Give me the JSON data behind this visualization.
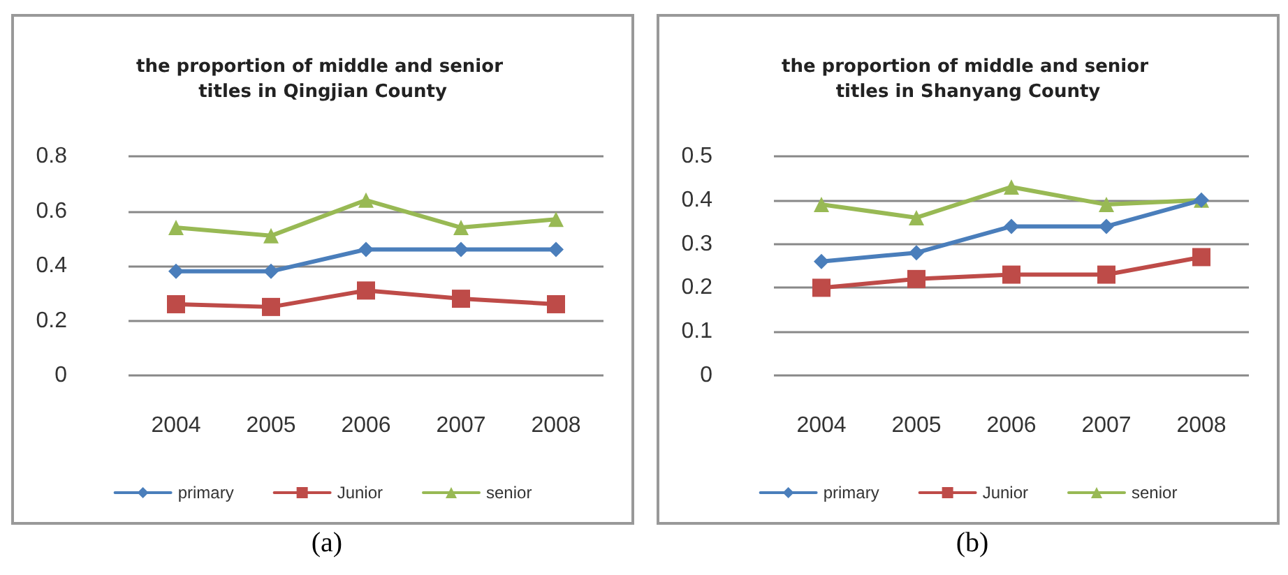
{
  "chart_data": [
    {
      "type": "line",
      "title": "the proportion of middle and senior titles in Qingjian County",
      "categories": [
        "2004",
        "2005",
        "2006",
        "2007",
        "2008"
      ],
      "ylim": [
        0,
        0.8
      ],
      "yticks": [
        0,
        0.2,
        0.4,
        0.6,
        0.8
      ],
      "grid": "y",
      "legend": "bottom",
      "annotations": [
        "(a)"
      ],
      "series": [
        {
          "name": "primary",
          "color": "#4a7ebb",
          "marker": "diamond",
          "values": [
            0.38,
            0.38,
            0.46,
            0.46,
            0.46
          ]
        },
        {
          "name": "Junior",
          "color": "#be4b48",
          "marker": "square",
          "values": [
            0.26,
            0.25,
            0.31,
            0.28,
            0.26
          ]
        },
        {
          "name": "senior",
          "color": "#98b954",
          "marker": "triangle",
          "values": [
            0.54,
            0.51,
            0.64,
            0.54,
            0.57
          ]
        }
      ]
    },
    {
      "type": "line",
      "title": "the proportion of middle and senior titles in Shanyang County",
      "categories": [
        "2004",
        "2005",
        "2006",
        "2007",
        "2008"
      ],
      "ylim": [
        0,
        0.5
      ],
      "yticks": [
        0,
        0.1,
        0.2,
        0.3,
        0.4,
        0.5
      ],
      "grid": "y",
      "legend": "bottom",
      "annotations": [
        "(b)"
      ],
      "series": [
        {
          "name": "primary",
          "color": "#4a7ebb",
          "marker": "diamond",
          "values": [
            0.26,
            0.28,
            0.34,
            0.34,
            0.4
          ]
        },
        {
          "name": "Junior",
          "color": "#be4b48",
          "marker": "square",
          "values": [
            0.2,
            0.22,
            0.23,
            0.23,
            0.27
          ]
        },
        {
          "name": "senior",
          "color": "#98b954",
          "marker": "triangle",
          "values": [
            0.39,
            0.36,
            0.43,
            0.39,
            0.4
          ]
        }
      ]
    }
  ]
}
